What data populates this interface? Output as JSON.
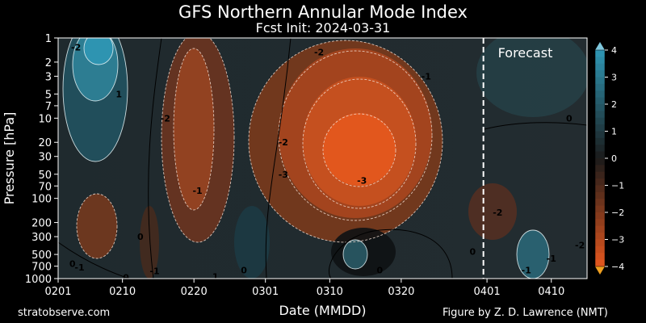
{
  "chart_data": {
    "type": "heatmap",
    "title": "GFS Northern Annular Mode Index",
    "subtitle": "Fcst Init: 2024-03-31",
    "xlabel": "Date (MMDD)",
    "ylabel": "Pressure [hPa]",
    "x_ticks": [
      {
        "label": "0201",
        "day": 0
      },
      {
        "label": "0210",
        "day": 9
      },
      {
        "label": "0220",
        "day": 19
      },
      {
        "label": "0301",
        "day": 29
      },
      {
        "label": "0310",
        "day": 38
      },
      {
        "label": "0320",
        "day": 48
      },
      {
        "label": "0401",
        "day": 60
      },
      {
        "label": "0410",
        "day": 69
      }
    ],
    "x_range_days": [
      0,
      74
    ],
    "forecast_start_day": 59.5,
    "y_scale": "log",
    "y_range": [
      1000,
      1
    ],
    "y_ticks": [
      1,
      2,
      3,
      5,
      7,
      10,
      20,
      30,
      50,
      70,
      100,
      200,
      300,
      500,
      700,
      1000
    ],
    "colorbar": {
      "range": [
        -4,
        4
      ],
      "ticks": [
        4,
        3,
        2,
        1,
        0,
        -1,
        -2,
        -3,
        -4
      ],
      "tick_labels": [
        "4",
        "3",
        "2",
        "1",
        "0",
        "−1",
        "−2",
        "−3",
        "−4"
      ],
      "positive_color": "#2f97b5",
      "negative_color": "#e4571e",
      "neutral_color": "#1a1a1a"
    },
    "annotation": "Forecast",
    "contour_labels": [
      {
        "text": "-2",
        "day": 2.5,
        "p": 1.3
      },
      {
        "text": "1",
        "day": 8.5,
        "p": 5
      },
      {
        "text": "-2",
        "day": 15,
        "p": 10
      },
      {
        "text": "-1",
        "day": 19.5,
        "p": 80
      },
      {
        "text": "0",
        "day": 11.5,
        "p": 300
      },
      {
        "text": "0",
        "day": 2,
        "p": 650
      },
      {
        "text": "-1",
        "day": 3,
        "p": 720
      },
      {
        "text": "0",
        "day": 9.5,
        "p": 970
      },
      {
        "text": "-1",
        "day": 13.5,
        "p": 800
      },
      {
        "text": "1",
        "day": 22,
        "p": 940
      },
      {
        "text": "0",
        "day": 26,
        "p": 780
      },
      {
        "text": "-2",
        "day": 31.5,
        "p": 20
      },
      {
        "text": "-3",
        "day": 31.5,
        "p": 50
      },
      {
        "text": "-2",
        "day": 36.5,
        "p": 1.5
      },
      {
        "text": "-3",
        "day": 42.5,
        "p": 60
      },
      {
        "text": "0",
        "day": 45,
        "p": 780
      },
      {
        "text": "-1",
        "day": 51.5,
        "p": 3
      },
      {
        "text": "0",
        "day": 58,
        "p": 460
      },
      {
        "text": "0",
        "day": 71.5,
        "p": 10
      },
      {
        "text": "-2",
        "day": 61.5,
        "p": 150
      },
      {
        "text": "-1",
        "day": 65.5,
        "p": 780
      },
      {
        "text": "-1",
        "day": 69,
        "p": 560
      },
      {
        "text": "-2",
        "day": 73,
        "p": 380
      }
    ]
  },
  "footer": {
    "left": "stratobserve.com",
    "right": "Figure by Z. D. Lawrence (NMT)"
  }
}
